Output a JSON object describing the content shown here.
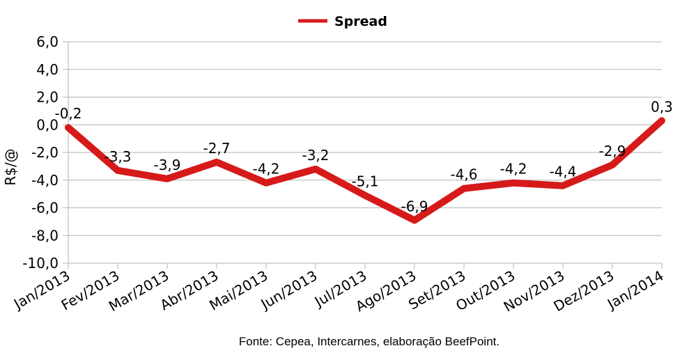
{
  "chart_data": {
    "type": "line",
    "categories": [
      "Jan/2013",
      "Fev/2013",
      "Mar/2013",
      "Abr/2013",
      "Mai/2013",
      "Jun/2013",
      "Jul/2013",
      "Ago/2013",
      "Set/2013",
      "Out/2013",
      "Nov/2013",
      "Dez/2013",
      "Jan/2014"
    ],
    "series": [
      {
        "name": "Spread",
        "values": [
          -0.2,
          -3.3,
          -3.9,
          -2.7,
          -4.2,
          -3.2,
          -5.1,
          -6.9,
          -4.6,
          -4.2,
          -4.4,
          -2.9,
          0.3
        ],
        "labels": [
          "-0,2",
          "-3,3",
          "-3,9",
          "-2,7",
          "-4,2",
          "-3,2",
          "-5,1",
          "-6,9",
          "-4,6",
          "-4,2",
          "-4,4",
          "-2,9",
          "0,3"
        ],
        "color": "#d61a1a"
      }
    ],
    "ylabel": "R$/@",
    "ylim": [
      -10,
      6
    ],
    "yticks": [
      6,
      4,
      2,
      0,
      -2,
      -4,
      -6,
      -8,
      -10
    ],
    "ytick_labels": [
      "6,0",
      "4,0",
      "2,0",
      "0,0",
      "-2,0",
      "-4,0",
      "-6,0",
      "-8,0",
      "-10,0"
    ],
    "grid": true,
    "legend_position": "top-center",
    "source": "Fonte: Cepea, Intercarnes, elaboração BeefPoint.",
    "grid_color": "#b3b3b3",
    "axis_color": "#b3b3b3"
  }
}
